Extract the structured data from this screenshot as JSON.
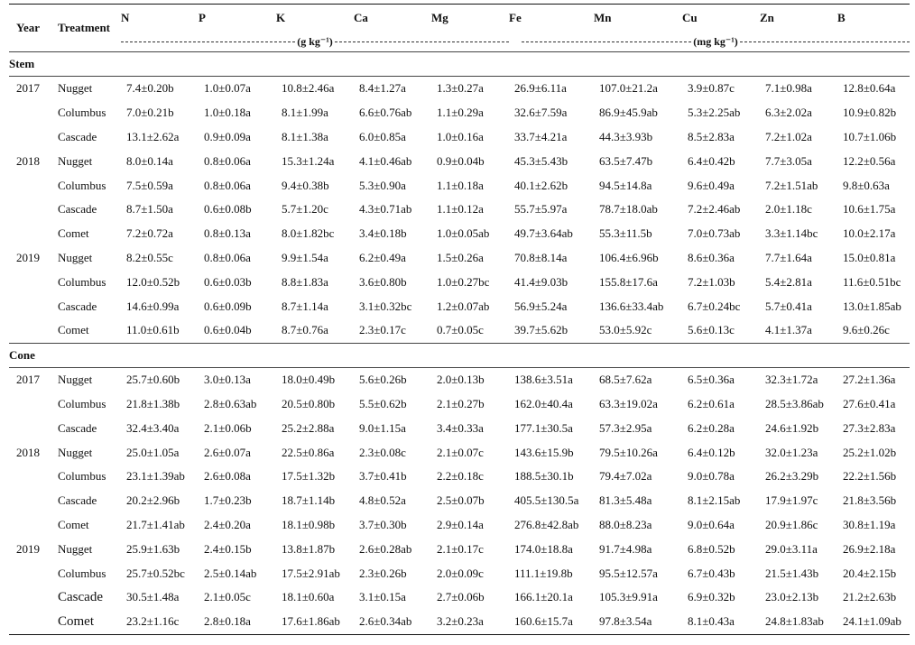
{
  "header": {
    "year": "Year",
    "treatment": "Treatment",
    "nutrients": [
      "N",
      "P",
      "K",
      "Ca",
      "Mg",
      "Fe",
      "Mn",
      "Cu",
      "Zn",
      "B"
    ],
    "unit_macro": "(g kg⁻¹)",
    "unit_micro": "(mg kg⁻¹)"
  },
  "sections": [
    {
      "title": "Stem",
      "rows": [
        {
          "year": "2017",
          "treatment": "Nugget",
          "values": [
            "7.4±0.20b",
            "1.0±0.07a",
            "10.8±2.46a",
            "8.4±1.27a",
            "1.3±0.27a",
            "26.9±6.11a",
            "107.0±21.2a",
            "3.9±0.87c",
            "7.1±0.98a",
            "12.8±0.64a"
          ]
        },
        {
          "year": "",
          "treatment": "Columbus",
          "values": [
            "7.0±0.21b",
            "1.0±0.18a",
            "8.1±1.99a",
            "6.6±0.76ab",
            "1.1±0.29a",
            "32.6±7.59a",
            "86.9±45.9ab",
            "5.3±2.25ab",
            "6.3±2.02a",
            "10.9±0.82b"
          ]
        },
        {
          "year": "",
          "treatment": "Cascade",
          "values": [
            "13.1±2.62a",
            "0.9±0.09a",
            "8.1±1.38a",
            "6.0±0.85a",
            "1.0±0.16a",
            "33.7±4.21a",
            "44.3±3.93b",
            "8.5±2.83a",
            "7.2±1.02a",
            "10.7±1.06b"
          ]
        },
        {
          "year": "2018",
          "treatment": "Nugget",
          "values": [
            "8.0±0.14a",
            "0.8±0.06a",
            "15.3±1.24a",
            "4.1±0.46ab",
            "0.9±0.04b",
            "45.3±5.43b",
            "63.5±7.47b",
            "6.4±0.42b",
            "7.7±3.05a",
            "12.2±0.56a"
          ]
        },
        {
          "year": "",
          "treatment": "Columbus",
          "values": [
            "7.5±0.59a",
            "0.8±0.06a",
            "9.4±0.38b",
            "5.3±0.90a",
            "1.1±0.18a",
            "40.1±2.62b",
            "94.5±14.8a",
            "9.6±0.49a",
            "7.2±1.51ab",
            "9.8±0.63a"
          ]
        },
        {
          "year": "",
          "treatment": "Cascade",
          "values": [
            "8.7±1.50a",
            "0.6±0.08b",
            "5.7±1.20c",
            "4.3±0.71ab",
            "1.1±0.12a",
            "55.7±5.97a",
            "78.7±18.0ab",
            "7.2±2.46ab",
            "2.0±1.18c",
            "10.6±1.75a"
          ]
        },
        {
          "year": "",
          "treatment": "Comet",
          "values": [
            "7.2±0.72a",
            "0.8±0.13a",
            "8.0±1.82bc",
            "3.4±0.18b",
            "1.0±0.05ab",
            "49.7±3.64ab",
            "55.3±11.5b",
            "7.0±0.73ab",
            "3.3±1.14bc",
            "10.0±2.17a"
          ]
        },
        {
          "year": "2019",
          "treatment": "Nugget",
          "values": [
            "8.2±0.55c",
            "0.8±0.06a",
            "9.9±1.54a",
            "6.2±0.49a",
            "1.5±0.26a",
            "70.8±8.14a",
            "106.4±6.96b",
            "8.6±0.36a",
            "7.7±1.64a",
            "15.0±0.81a"
          ]
        },
        {
          "year": "",
          "treatment": "Columbus",
          "values": [
            "12.0±0.52b",
            "0.6±0.03b",
            "8.8±1.83a",
            "3.6±0.80b",
            "1.0±0.27bc",
            "41.4±9.03b",
            "155.8±17.6a",
            "7.2±1.03b",
            "5.4±2.81a",
            "11.6±0.51bc"
          ]
        },
        {
          "year": "",
          "treatment": "Cascade",
          "values": [
            "14.6±0.99a",
            "0.6±0.09b",
            "8.7±1.14a",
            "3.1±0.32bc",
            "1.2±0.07ab",
            "56.9±5.24a",
            "136.6±33.4ab",
            "6.7±0.24bc",
            "5.7±0.41a",
            "13.0±1.85ab"
          ]
        },
        {
          "year": "",
          "treatment": "Comet",
          "values": [
            "11.0±0.61b",
            "0.6±0.04b",
            "8.7±0.76a",
            "2.3±0.17c",
            "0.7±0.05c",
            "39.7±5.62b",
            "53.0±5.92c",
            "5.6±0.13c",
            "4.1±1.37a",
            "9.6±0.26c"
          ]
        }
      ]
    },
    {
      "title": "Cone",
      "rows": [
        {
          "year": "2017",
          "treatment": "Nugget",
          "values": [
            "25.7±0.60b",
            "3.0±0.13a",
            "18.0±0.49b",
            "5.6±0.26b",
            "2.0±0.13b",
            "138.6±3.51a",
            "68.5±7.62a",
            "6.5±0.36a",
            "32.3±1.72a",
            "27.2±1.36a"
          ]
        },
        {
          "year": "",
          "treatment": "Columbus",
          "values": [
            "21.8±1.38b",
            "2.8±0.63ab",
            "20.5±0.80b",
            "5.5±0.62b",
            "2.1±0.27b",
            "162.0±40.4a",
            "63.3±19.02a",
            "6.2±0.61a",
            "28.5±3.86ab",
            "27.6±0.41a"
          ]
        },
        {
          "year": "",
          "treatment": "Cascade",
          "values": [
            "32.4±3.40a",
            "2.1±0.06b",
            "25.2±2.88a",
            "9.0±1.15a",
            "3.4±0.33a",
            "177.1±30.5a",
            "57.3±2.95a",
            "6.2±0.28a",
            "24.6±1.92b",
            "27.3±2.83a"
          ]
        },
        {
          "year": "2018",
          "treatment": "Nugget",
          "values": [
            "25.0±1.05a",
            "2.6±0.07a",
            "22.5±0.86a",
            "2.3±0.08c",
            "2.1±0.07c",
            "143.6±15.9b",
            "79.5±10.26a",
            "6.4±0.12b",
            "32.0±1.23a",
            "25.2±1.02b"
          ]
        },
        {
          "year": "",
          "treatment": "Columbus",
          "values": [
            "23.1±1.39ab",
            "2.6±0.08a",
            "17.5±1.32b",
            "3.7±0.41b",
            "2.2±0.18c",
            "188.5±30.1b",
            "79.4±7.02a",
            "9.0±0.78a",
            "26.2±3.29b",
            "22.2±1.56b"
          ]
        },
        {
          "year": "",
          "treatment": "Cascade",
          "values": [
            "20.2±2.96b",
            "1.7±0.23b",
            "18.7±1.14b",
            "4.8±0.52a",
            "2.5±0.07b",
            "405.5±130.5a",
            "81.3±5.48a",
            "8.1±2.15ab",
            "17.9±1.97c",
            "21.8±3.56b"
          ]
        },
        {
          "year": "",
          "treatment": "Comet",
          "values": [
            "21.7±1.41ab",
            "2.4±0.20a",
            "18.1±0.98b",
            "3.7±0.30b",
            "2.9±0.14a",
            "276.8±42.8ab",
            "88.0±8.23a",
            "9.0±0.64a",
            "20.9±1.86c",
            "30.8±1.19a"
          ]
        },
        {
          "year": "2019",
          "treatment": "Nugget",
          "values": [
            "25.9±1.63b",
            "2.4±0.15b",
            "13.8±1.87b",
            "2.6±0.28ab",
            "2.1±0.17c",
            "174.0±18.8a",
            "91.7±4.98a",
            "6.8±0.52b",
            "29.0±3.11a",
            "26.9±2.18a"
          ]
        },
        {
          "year": "",
          "treatment": "Columbus",
          "values": [
            "25.7±0.52bc",
            "2.5±0.14ab",
            "17.5±2.91ab",
            "2.3±0.26b",
            "2.0±0.09c",
            "111.1±19.8b",
            "95.5±12.57a",
            "6.7±0.43b",
            "21.5±1.43b",
            "20.4±2.15b"
          ]
        },
        {
          "year": "",
          "treatment": "Cascade",
          "values": [
            "30.5±1.48a",
            "2.1±0.05c",
            "18.1±0.60a",
            "3.1±0.15a",
            "2.7±0.06b",
            "166.1±20.1a",
            "105.3±9.91a",
            "6.9±0.32b",
            "23.0±2.13b",
            "21.2±2.63b"
          ]
        },
        {
          "year": "",
          "treatment": "Comet",
          "values": [
            "23.2±1.16c",
            "2.8±0.18a",
            "17.6±1.86ab",
            "2.6±0.34ab",
            "3.2±0.23a",
            "160.6±15.7a",
            "97.8±3.54a",
            "8.1±0.43a",
            "24.8±1.83ab",
            "24.1±1.09ab"
          ]
        }
      ]
    }
  ]
}
